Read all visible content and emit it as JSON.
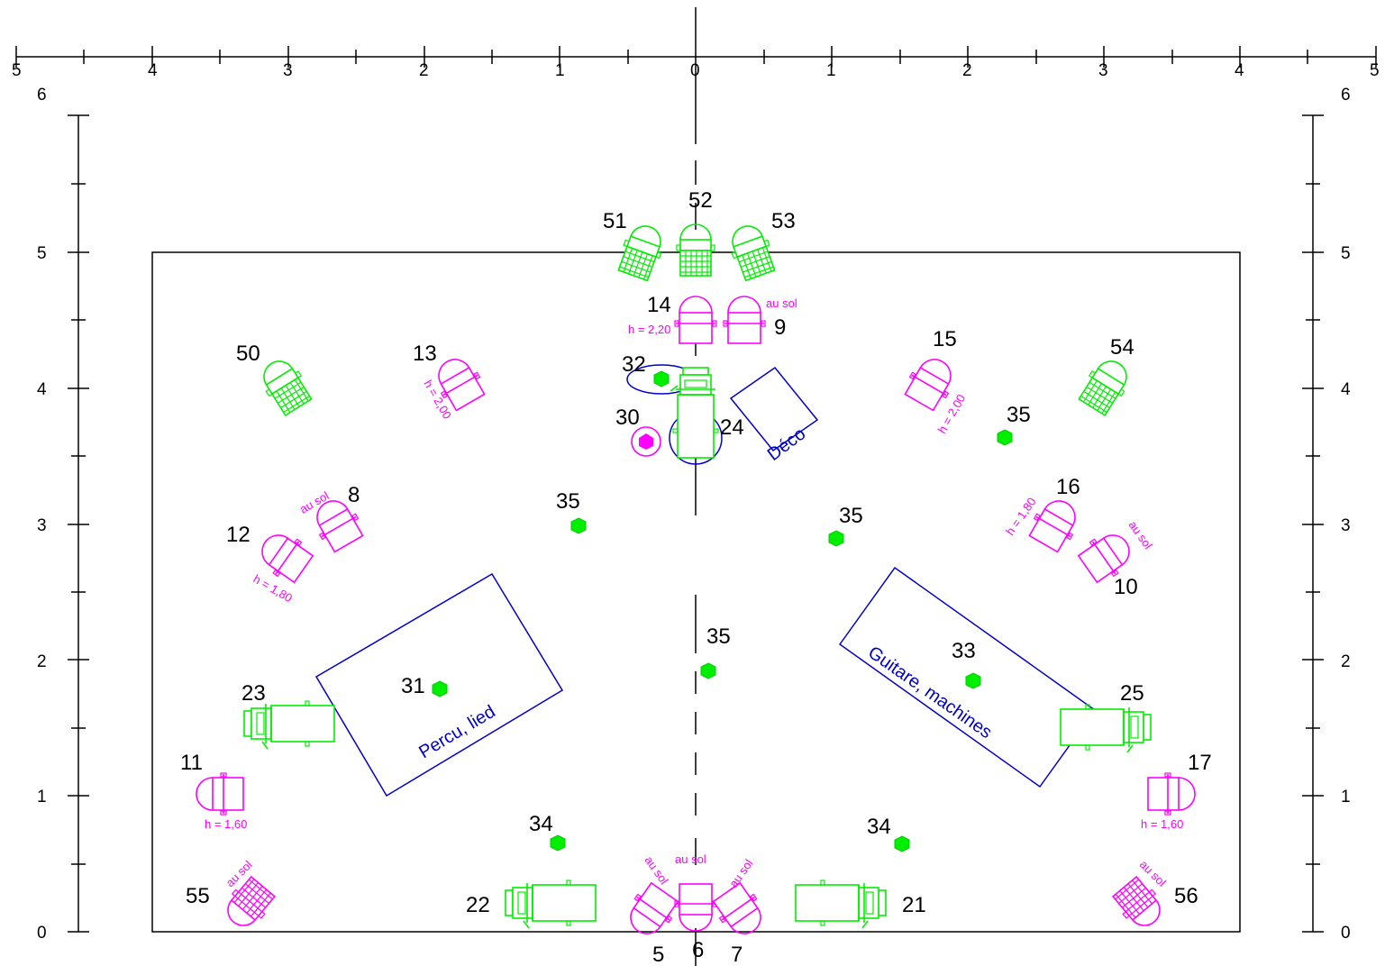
{
  "colors": {
    "axis": "#000000",
    "profile": "#ff00ff",
    "fresnel": "#00ee00",
    "zone": "#0000cc"
  },
  "scale": {
    "top_labels": [
      "5",
      "4",
      "3",
      "2",
      "1",
      "0",
      "1",
      "2",
      "3",
      "4",
      "5"
    ],
    "side_labels": [
      "0",
      "1",
      "2",
      "3",
      "4",
      "5",
      "6"
    ]
  },
  "zones": {
    "percu": "Percu, lied",
    "guitare": "Guitare, machines",
    "deco": "Déco"
  },
  "projectors": [
    {
      "id": "51",
      "type": "flood",
      "icon": "grid-fresnel-icon",
      "color": "green"
    },
    {
      "id": "52",
      "type": "flood",
      "icon": "grid-fresnel-icon",
      "color": "green"
    },
    {
      "id": "53",
      "type": "flood",
      "icon": "grid-fresnel-icon",
      "color": "green"
    },
    {
      "id": "50",
      "type": "flood",
      "icon": "grid-fresnel-icon",
      "color": "green"
    },
    {
      "id": "54",
      "type": "flood",
      "icon": "grid-fresnel-icon",
      "color": "green"
    },
    {
      "id": "14",
      "type": "profile",
      "note": "h = 2,20"
    },
    {
      "id": "9",
      "type": "profile",
      "note": "au sol"
    },
    {
      "id": "13",
      "type": "profile",
      "note": "h = 2,00"
    },
    {
      "id": "15",
      "type": "profile",
      "note": "h = 2,00"
    },
    {
      "id": "8",
      "type": "profile",
      "note": "au sol"
    },
    {
      "id": "12",
      "type": "profile",
      "note": "h = 1,80"
    },
    {
      "id": "16",
      "type": "profile",
      "note": "h = 1,80"
    },
    {
      "id": "10",
      "type": "profile",
      "note": "au sol"
    },
    {
      "id": "11",
      "type": "profile",
      "note": "h = 1,60"
    },
    {
      "id": "17",
      "type": "profile",
      "note": "h = 1,60"
    },
    {
      "id": "5",
      "type": "profile",
      "note": "au sol"
    },
    {
      "id": "6",
      "type": "profile",
      "note": "au sol"
    },
    {
      "id": "7",
      "type": "profile",
      "note": "au sol"
    },
    {
      "id": "55",
      "type": "floor-flood",
      "note": "au sol"
    },
    {
      "id": "56",
      "type": "floor-flood",
      "note": "au sol"
    },
    {
      "id": "23",
      "type": "fresnel-side"
    },
    {
      "id": "25",
      "type": "fresnel-side"
    },
    {
      "id": "22",
      "type": "fresnel-side"
    },
    {
      "id": "21",
      "type": "fresnel-side"
    },
    {
      "id": "24",
      "type": "fresnel-vertical"
    },
    {
      "id": "30",
      "type": "hexagon-floor"
    },
    {
      "id": "32",
      "type": "spot-mark"
    },
    {
      "id": "31",
      "type": "spot-mark"
    },
    {
      "id": "33",
      "type": "spot-mark"
    },
    {
      "id": "34",
      "type": "spot-mark"
    },
    {
      "id": "35",
      "type": "spot-mark"
    }
  ]
}
